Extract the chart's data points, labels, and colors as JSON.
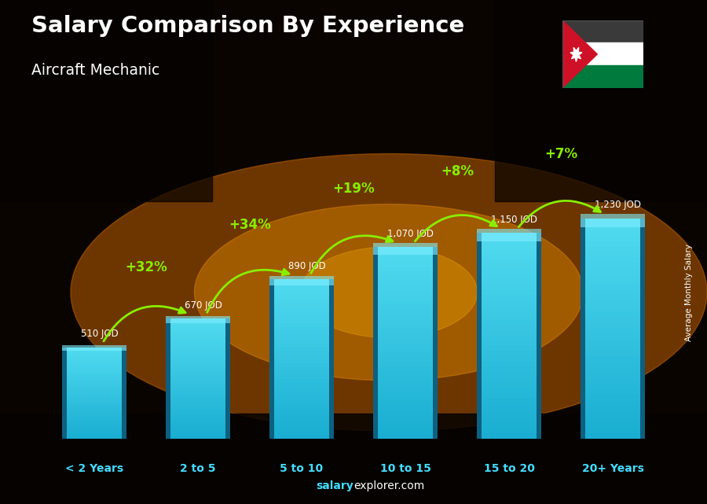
{
  "title": "Salary Comparison By Experience",
  "subtitle": "Aircraft Mechanic",
  "categories": [
    "< 2 Years",
    "2 to 5",
    "5 to 10",
    "10 to 15",
    "15 to 20",
    "20+ Years"
  ],
  "values": [
    510,
    670,
    890,
    1070,
    1150,
    1230
  ],
  "bar_color_main": "#29bcd8",
  "bar_color_light": "#50d8f0",
  "bar_color_dark": "#1580a0",
  "value_labels": [
    "510 JOD",
    "670 JOD",
    "890 JOD",
    "1,070 JOD",
    "1,150 JOD",
    "1,230 JOD"
  ],
  "pct_labels": [
    "+32%",
    "+34%",
    "+19%",
    "+8%",
    "+7%"
  ],
  "pct_color": "#88ee00",
  "title_color": "#ffffff",
  "subtitle_color": "#ffffff",
  "xlabel_color": "#44ddff",
  "value_label_color": "#ffffff",
  "ylabel_text": "Average Monthly Salary",
  "footer_salary": "salary",
  "footer_rest": "explorer.com",
  "footer_salary_color": "#44ddff",
  "footer_rest_color": "#ffffff",
  "ylim": [
    0,
    1550
  ]
}
